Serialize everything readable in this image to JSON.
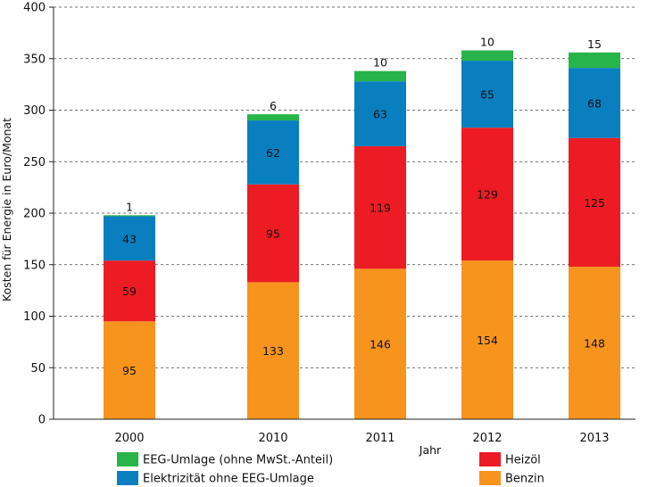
{
  "chart_data": {
    "type": "bar",
    "stacked": true,
    "title": "",
    "xlabel": "Jahr",
    "ylabel": "Kosten für Energie in Euro/Monat",
    "ylim": [
      0,
      400
    ],
    "yticks": [
      0,
      50,
      100,
      150,
      200,
      250,
      300,
      350,
      400
    ],
    "grid": "horizontal dashed",
    "categories": [
      "2000",
      "2010",
      "2011",
      "2012",
      "2013"
    ],
    "series": [
      {
        "name": "Benzin",
        "color": "#f7941d",
        "values": [
          95,
          133,
          146,
          154,
          148
        ]
      },
      {
        "name": "Heizöl",
        "color": "#ed1c24",
        "values": [
          59,
          95,
          119,
          129,
          125
        ]
      },
      {
        "name": "Elektrizität ohne EEG-Umlage",
        "color": "#0a7fc0",
        "values": [
          43,
          62,
          63,
          65,
          68
        ]
      },
      {
        "name": "EEG-Umlage (ohne MwSt.-Anteil)",
        "color": "#27b44a",
        "values": [
          1,
          6,
          10,
          10,
          15
        ]
      }
    ],
    "legend": {
      "placement": "bottom",
      "left_column": [
        "EEG-Umlage (ohne MwSt.-Anteil)",
        "Elektrizität ohne EEG-Umlage"
      ],
      "right_column": [
        "Heizöl",
        "Benzin"
      ]
    }
  }
}
